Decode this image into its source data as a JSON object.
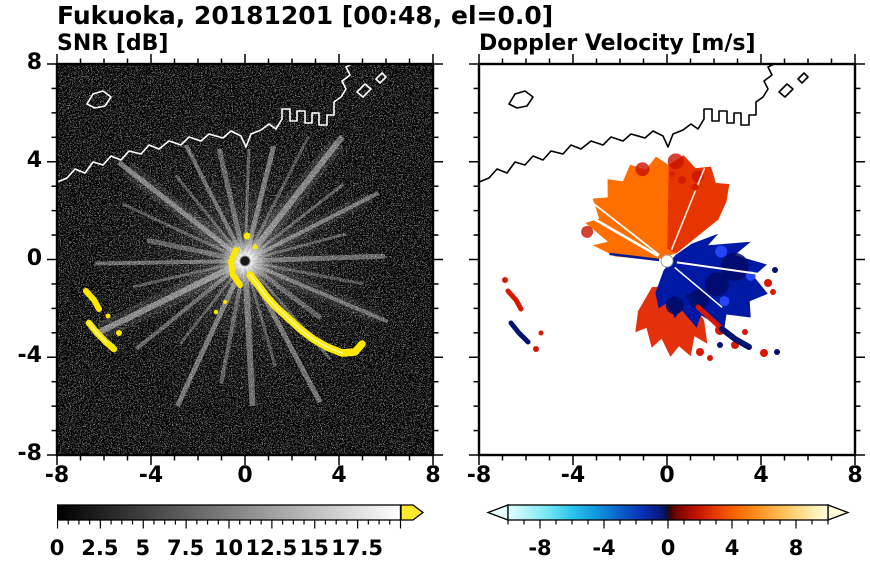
{
  "title": "Fukuoka, 20181201 [00:48, el=0.0]",
  "meta": {
    "site": "Fukuoka",
    "date": "20181201",
    "time": "00:48",
    "elevation": "0.0"
  },
  "panels": {
    "snr": {
      "title": "SNR [dB]"
    },
    "doppler": {
      "title": "Doppler Velocity [m/s]"
    }
  },
  "axes": {
    "x_tick_labels": [
      "-8",
      "-4",
      "0",
      "4",
      "8"
    ],
    "y_tick_labels": [
      "8",
      "4",
      "0",
      "-4",
      "-8"
    ],
    "x_range": [
      -8,
      8
    ],
    "y_range": [
      -8,
      8
    ]
  },
  "colorbars": {
    "snr": {
      "labels": [
        "0",
        "2.5",
        "5",
        "7.5",
        "10",
        "12.5",
        "15",
        "17.5"
      ],
      "range": [
        0,
        20
      ],
      "colormap": "grayscale black to white",
      "overflow_arrow_color": "#ffe92e"
    },
    "doppler": {
      "labels": [
        "-8",
        "-4",
        "0",
        "4",
        "8"
      ],
      "range": [
        -10,
        10
      ],
      "colormap": "diverging cyan-blue-navy / red-orange-yellow",
      "underflow_arrow_color": "#e4fdff",
      "overflow_arrow_color": "#fffbd8"
    }
  },
  "chart_data": [
    {
      "type": "heatmap",
      "panel": "left",
      "title": "SNR [dB]",
      "x_range": [
        -8,
        8
      ],
      "y_range": [
        -8,
        8
      ],
      "x_ticks": [
        -8,
        -4,
        0,
        4,
        8
      ],
      "y_ticks": [
        -8,
        -4,
        0,
        4,
        8
      ],
      "colorbar": {
        "min": 0,
        "max": 20,
        "tick_labels": [
          0,
          2.5,
          5,
          7.5,
          10,
          12.5,
          15,
          17.5
        ],
        "colormap": "black to white, yellow overflow arrow"
      },
      "features": [
        "speckled dark noise background",
        "bright white radial beam streaks centered on radar at (0,0)",
        "yellow high-SNR echo chain curving from (0,-0.5) to (4,-4)",
        "isolated yellow echo patches near (-6.5,-1.5) and (-6,-3.5)",
        "white coastline outline across the north (y = 4 to 6) with harbor piers and a small island"
      ]
    },
    {
      "type": "heatmap",
      "panel": "right",
      "title": "Doppler Velocity [m/s]",
      "x_range": [
        -8,
        8
      ],
      "y_range": [
        -8,
        8
      ],
      "x_ticks": [
        -8,
        -4,
        0,
        4,
        8
      ],
      "y_ticks": [
        -8,
        -4,
        0,
        4,
        8
      ],
      "colorbar": {
        "min": -10,
        "max": 10,
        "tick_labels": [
          -8,
          -4,
          0,
          4,
          8
        ],
        "colormap": "light cyan - blue - dark navy | dark red - orange - pale yellow",
        "underflow": "cyan left arrow",
        "overflow": "yellow right arrow"
      },
      "features": [
        "positive-velocity orange/red fan north of radar out to r = 4",
        "negative-velocity dark-blue lobe east to southeast of radar",
        "red echoes fringing the south and southeast edge with scattered specks",
        "scattered red/navy ship-channel echoes near x = -6.5",
        "black coastline outline across the north",
        "thin white no-data rays radiating from the radar center"
      ]
    }
  ]
}
